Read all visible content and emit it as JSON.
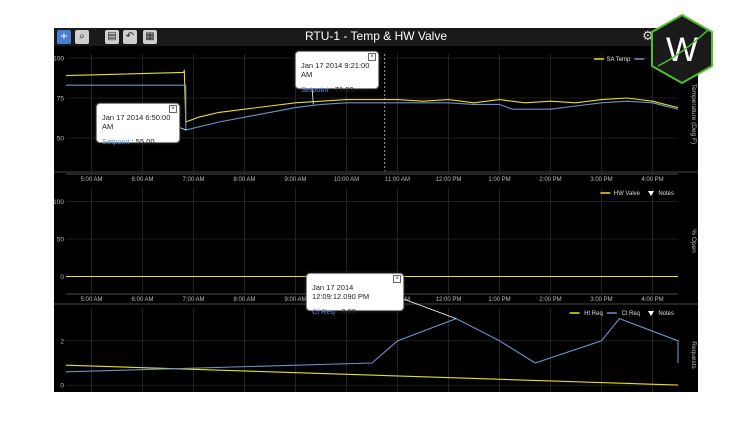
{
  "app": {
    "title": "RTU-1 - Temp & HW Valve",
    "toolbar": [
      "plus-icon",
      "zoom-icon",
      "export-icon",
      "back-icon",
      "calendar-icon"
    ],
    "settings_icon": "gear-icon",
    "logo_letter": "W"
  },
  "colors": {
    "yellow": "#e8e020",
    "blue": "#6b92c9",
    "grid": "#3a3a3a",
    "axis": "#bbbbbb"
  },
  "time_ticks": [
    "5:00 AM",
    "6:00 AM",
    "7:00 AM",
    "8:00 AM",
    "9:00 AM",
    "10:00 AM",
    "11:00 AM",
    "12:00 PM",
    "1:00 PM",
    "2:00 PM",
    "3:00 PM",
    "4:00 PM"
  ],
  "bottom_axis_extra": {
    "start_date": "Jan 17 2014",
    "end_date": "Jan 17 2014"
  },
  "chart_data": [
    {
      "type": "line",
      "x_range": [
        4.5,
        16.5
      ],
      "ylim": [
        40,
        105
      ],
      "yticks": [
        "100",
        "75",
        "50"
      ],
      "ylabel": "Temperature (Deg F)",
      "legend": [
        "SA Temp",
        "Setpoint"
      ],
      "cursor_x": 10.75,
      "series": [
        {
          "name": "SA Temp",
          "color": "yellow",
          "x": [
            4.5,
            6.8,
            6.82,
            6.85,
            7.1,
            7.5,
            8,
            8.5,
            9,
            9.5,
            10,
            10.5,
            11,
            11.5,
            12,
            12.5,
            13,
            13.5,
            14,
            14.5,
            15,
            15.5,
            16,
            16.5
          ],
          "y": [
            89,
            91,
            92,
            60,
            63,
            66,
            68,
            70,
            72,
            73,
            74,
            74,
            74,
            73,
            74,
            72,
            74,
            72,
            73,
            72,
            74,
            75,
            73,
            69
          ]
        },
        {
          "name": "Setpoint",
          "color": "blue",
          "x": [
            4.5,
            6.85,
            6.85,
            7.5,
            8,
            8.5,
            9,
            9.5,
            10,
            10.5,
            11,
            11.5,
            12,
            12.5,
            13,
            13.25,
            13.5,
            14,
            14.5,
            15,
            15.5,
            16,
            16.5
          ],
          "y": [
            83,
            83,
            55,
            60,
            63,
            66,
            69,
            71,
            72,
            72,
            72,
            72,
            72,
            71,
            71,
            68,
            68,
            68,
            70,
            72,
            73,
            72,
            68
          ]
        }
      ]
    },
    {
      "type": "line",
      "x_range": [
        4.5,
        16.5
      ],
      "ylim": [
        -10,
        110
      ],
      "yticks": [
        "100",
        "50",
        "0"
      ],
      "ylabel": "% Open",
      "legend": [
        "HW Valve",
        "Notes"
      ],
      "series": [
        {
          "name": "HW Valve",
          "color": "yellow",
          "x": [
            4.5,
            16.5
          ],
          "y": [
            0,
            0
          ]
        }
      ]
    },
    {
      "type": "line",
      "x_range": [
        4.5,
        16.5
      ],
      "ylim": [
        -0.4,
        3.3
      ],
      "yticks": [
        "2",
        "0"
      ],
      "ylabel": "Requests",
      "legend": [
        "Ht Req",
        "Cl Req",
        "Notes"
      ],
      "series": [
        {
          "name": "Ht Req",
          "color": "yellow",
          "x": [
            4.5,
            16.5
          ],
          "y": [
            0.9,
            0
          ]
        },
        {
          "name": "Cl Req",
          "color": "blue",
          "x": [
            4.5,
            10.5,
            11,
            12.15,
            13,
            13.7,
            15,
            15.35,
            16.5,
            16.5
          ],
          "y": [
            0.6,
            1.0,
            2.0,
            3.0,
            2.0,
            1.0,
            2.0,
            3.0,
            2.0,
            1.0
          ]
        }
      ]
    }
  ],
  "tooltips": [
    {
      "time": "Jan 17 2014 9:21:00 AM",
      "key": "Setpoint",
      "value": "71.00"
    },
    {
      "time": "Jan 17 2014 6:50:00 AM",
      "key": "Setpoint",
      "value": "55.00"
    },
    {
      "time": "Jan 17 2014 12:09:12.090 PM",
      "key": "Cl Req",
      "value": "3.00"
    }
  ]
}
